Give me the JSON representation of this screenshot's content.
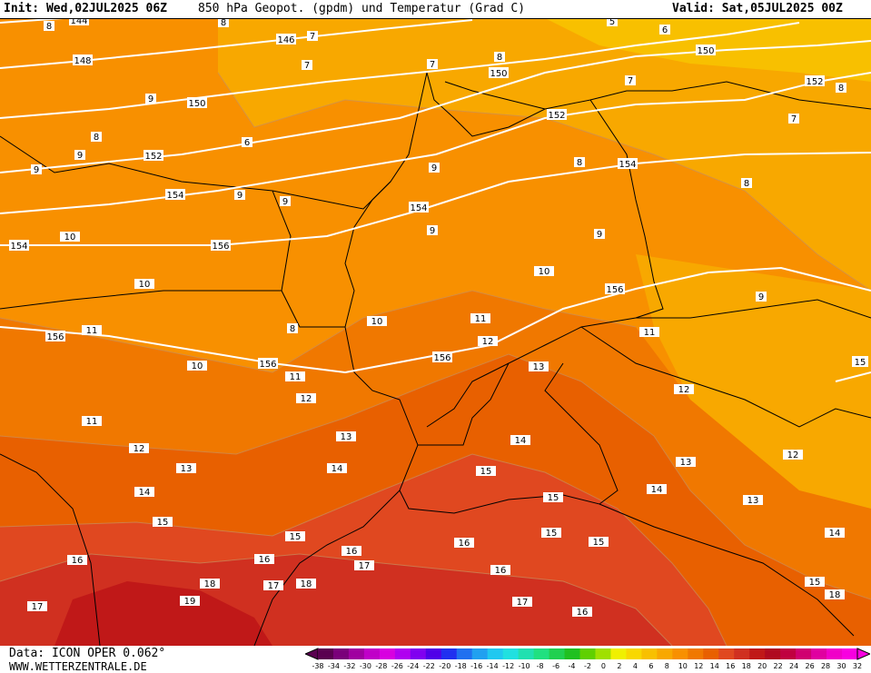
{
  "header": {
    "init": "Init: Wed,02JUL2025 06Z",
    "title": "850 hPa Geopot. (gpdm) und Temperatur (Grad C)",
    "valid": "Valid: Sat,05JUL2025 00Z"
  },
  "footer": {
    "data_source": "Data: ICON OPER 0.062°",
    "website": "WWW.WETTERZENTRALE.DE"
  },
  "legend": {
    "ticks": [
      "-38",
      "-34",
      "-32",
      "-30",
      "-28",
      "-26",
      "-24",
      "-22",
      "-20",
      "-18",
      "-16",
      "-14",
      "-12",
      "-10",
      "-8",
      "-6",
      "-4",
      "-2",
      "0",
      "2",
      "4",
      "6",
      "8",
      "10",
      "12",
      "14",
      "16",
      "18",
      "20",
      "22",
      "24",
      "26",
      "28",
      "30",
      "32"
    ],
    "colors": [
      "#5a0050",
      "#7a007a",
      "#a000a0",
      "#c000c8",
      "#d800e0",
      "#b000f0",
      "#8000f0",
      "#5000e8",
      "#2030f0",
      "#2070f0",
      "#20a0f0",
      "#20c8f0",
      "#20e0e0",
      "#20e0b0",
      "#20e080",
      "#20d050",
      "#20c020",
      "#60d000",
      "#a0e000",
      "#f0f000",
      "#f8d800",
      "#f8c000",
      "#f8a800",
      "#f89000",
      "#f07800",
      "#e86000",
      "#e04820",
      "#d03020",
      "#c01818",
      "#b00a20",
      "#c00040",
      "#d00070",
      "#e000a0",
      "#f000c8",
      "#f800e0"
    ]
  },
  "map": {
    "colors": {
      "t5": "#f8c000",
      "t7": "#f8a800",
      "t9": "#f89000",
      "t11": "#f07800",
      "t13": "#e86000",
      "t15": "#e04820",
      "t17": "#d03020",
      "t19": "#c01818",
      "geopot_line": "#ffffff",
      "border_line": "#000000",
      "iso_line": "#b8a080"
    },
    "geopot_labels": [
      "144",
      "146",
      "148",
      "150",
      "152",
      "154",
      "156",
      "150",
      "152",
      "154",
      "156",
      "154",
      "156",
      "150",
      "152",
      "154",
      "156",
      "156",
      "15"
    ],
    "temp_labels": [
      "8",
      "8",
      "9",
      "9",
      "8",
      "9",
      "9",
      "9",
      "10",
      "10",
      "10",
      "10",
      "11",
      "11",
      "11",
      "12",
      "12",
      "13",
      "13",
      "14",
      "14",
      "15",
      "15",
      "15",
      "16",
      "16",
      "17",
      "17",
      "18",
      "19",
      "8",
      "7",
      "7",
      "8",
      "7",
      "6",
      "5",
      "7",
      "8",
      "9",
      "9",
      "9",
      "8",
      "10",
      "11",
      "12",
      "13",
      "14",
      "15",
      "15",
      "16",
      "16",
      "17",
      "18",
      "16",
      "9",
      "11",
      "12",
      "13",
      "14",
      "15",
      "16",
      "17",
      "18",
      "15",
      "14",
      "13",
      "12",
      "7",
      "8",
      "6"
    ]
  }
}
